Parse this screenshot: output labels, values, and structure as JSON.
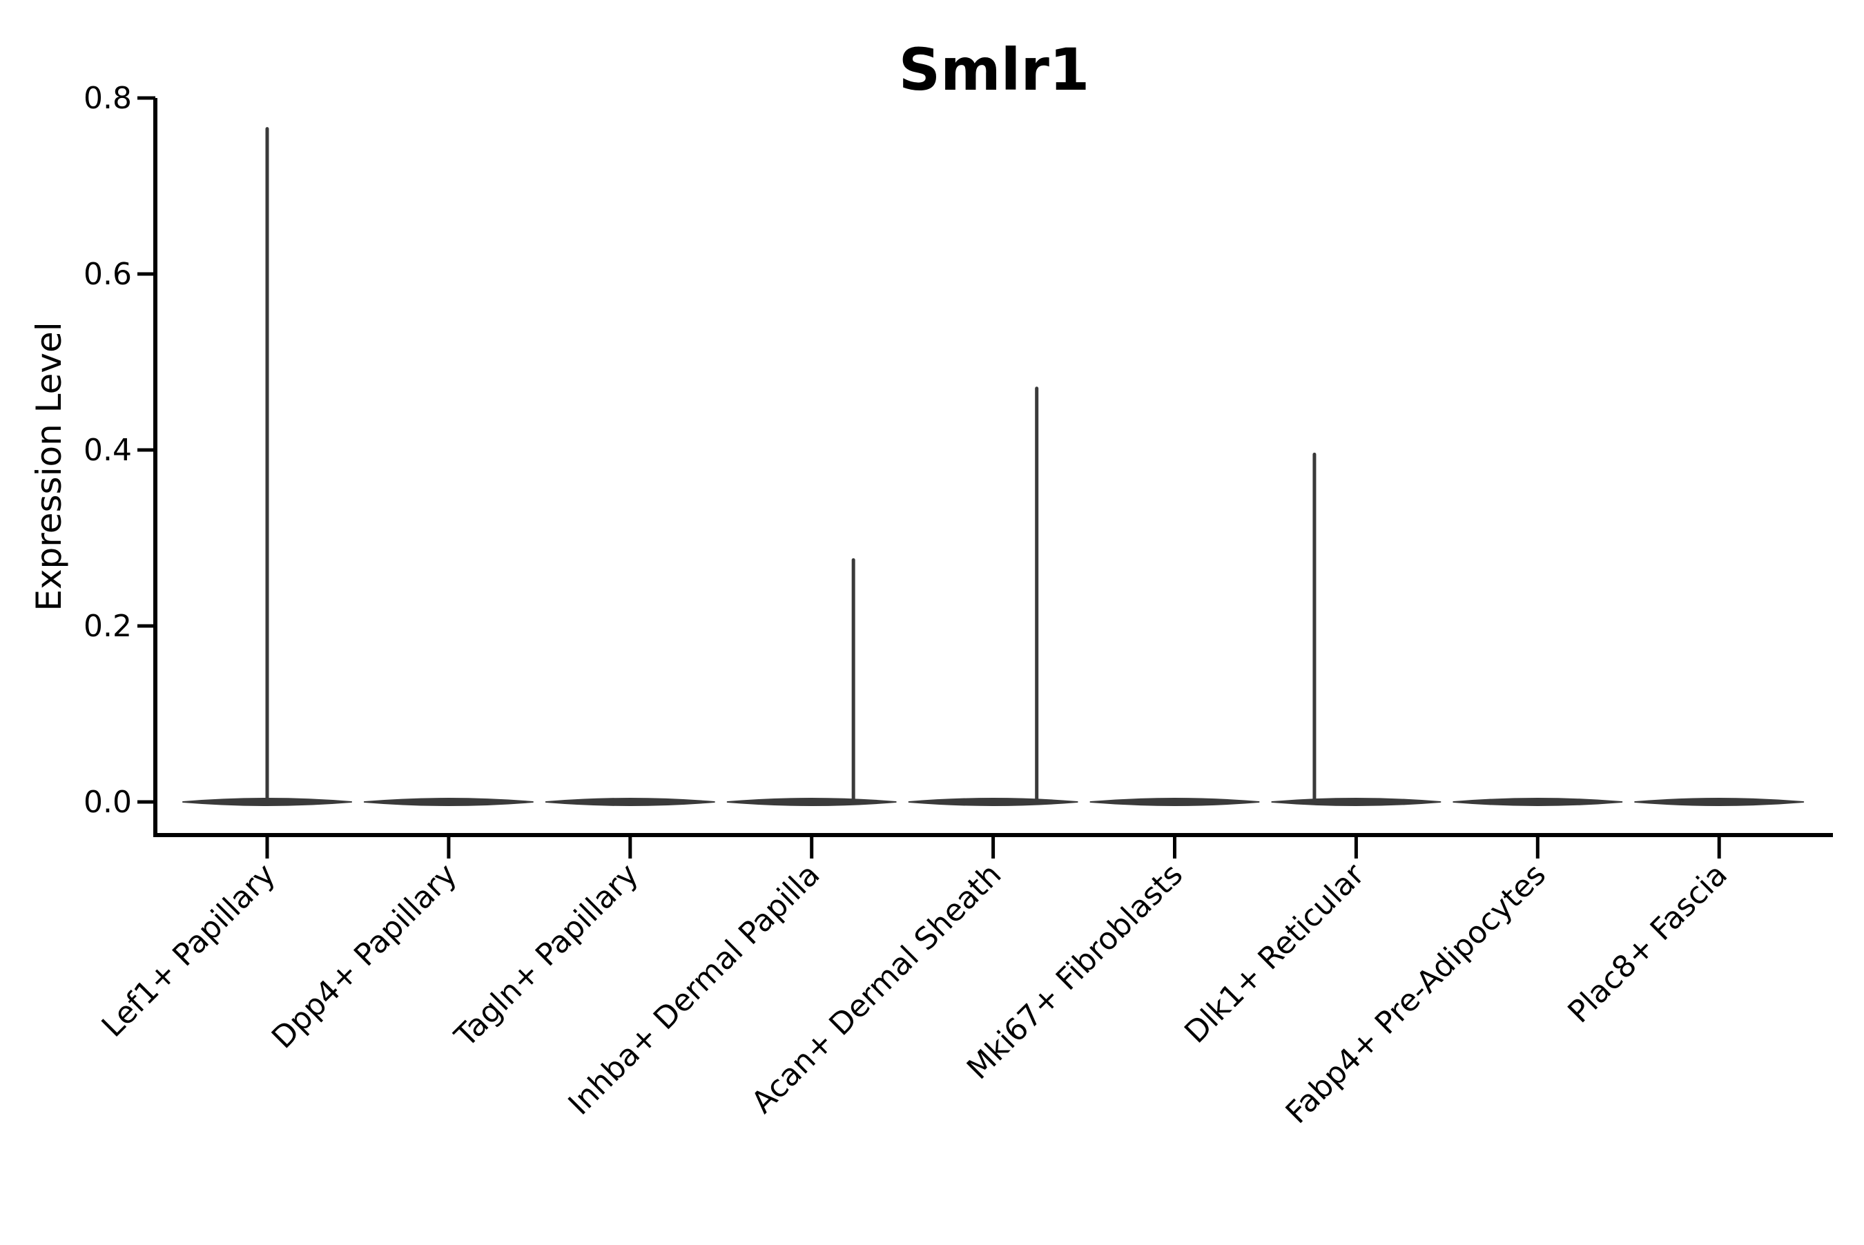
{
  "figure": {
    "title": "Smlr1",
    "y_axis_label": "Expression Level"
  },
  "chart_data": {
    "type": "violin",
    "title": "Smlr1",
    "xlabel": "",
    "ylabel": "Expression Level",
    "legend": "none",
    "grid": false,
    "background_color": "#ffffff",
    "axis_color": "#000000",
    "violin_color": "#3a3a3a",
    "ylim": [
      -0.04,
      0.8
    ],
    "yticks": [
      0.0,
      0.2,
      0.4,
      0.6,
      0.8
    ],
    "ytick_labels": [
      "0.0",
      "0.2",
      "0.4",
      "0.6",
      "0.8"
    ],
    "x_tick_rotation_deg": 45,
    "categories": [
      "Lef1+ Papillary",
      "Dpp4+ Papillary",
      "Tagln+ Papillary",
      "Inhba+ Dermal Papilla",
      "Acan+ Dermal Sheath",
      "Mki67+ Fibroblasts",
      "Dlk1+ Reticular",
      "Fabp4+ Pre-Adipocytes",
      "Plac8+ Fascia"
    ],
    "series": [
      {
        "name": "Lef1+ Papillary",
        "baseline_value": 0.0,
        "max_value": 0.765,
        "has_spike": true,
        "spike_offset_frac": 0.0
      },
      {
        "name": "Dpp4+ Papillary",
        "baseline_value": 0.0,
        "max_value": 0.0,
        "has_spike": false,
        "spike_offset_frac": 0.0
      },
      {
        "name": "Tagln+ Papillary",
        "baseline_value": 0.0,
        "max_value": 0.0,
        "has_spike": false,
        "spike_offset_frac": 0.0
      },
      {
        "name": "Inhba+ Dermal Papilla",
        "baseline_value": 0.0,
        "max_value": 0.275,
        "has_spike": true,
        "spike_offset_frac": 0.23
      },
      {
        "name": "Acan+ Dermal Sheath",
        "baseline_value": 0.0,
        "max_value": 0.47,
        "has_spike": true,
        "spike_offset_frac": 0.24
      },
      {
        "name": "Mki67+ Fibroblasts",
        "baseline_value": 0.0,
        "max_value": 0.0,
        "has_spike": false,
        "spike_offset_frac": 0.0
      },
      {
        "name": "Dlk1+ Reticular",
        "baseline_value": 0.0,
        "max_value": 0.395,
        "has_spike": true,
        "spike_offset_frac": -0.23
      },
      {
        "name": "Fabp4+ Pre-Adipocytes",
        "baseline_value": 0.0,
        "max_value": 0.0,
        "has_spike": false,
        "spike_offset_frac": 0.0
      },
      {
        "name": "Plac8+ Fascia",
        "baseline_value": 0.0,
        "max_value": 0.0,
        "has_spike": false,
        "spike_offset_frac": 0.0
      }
    ]
  }
}
